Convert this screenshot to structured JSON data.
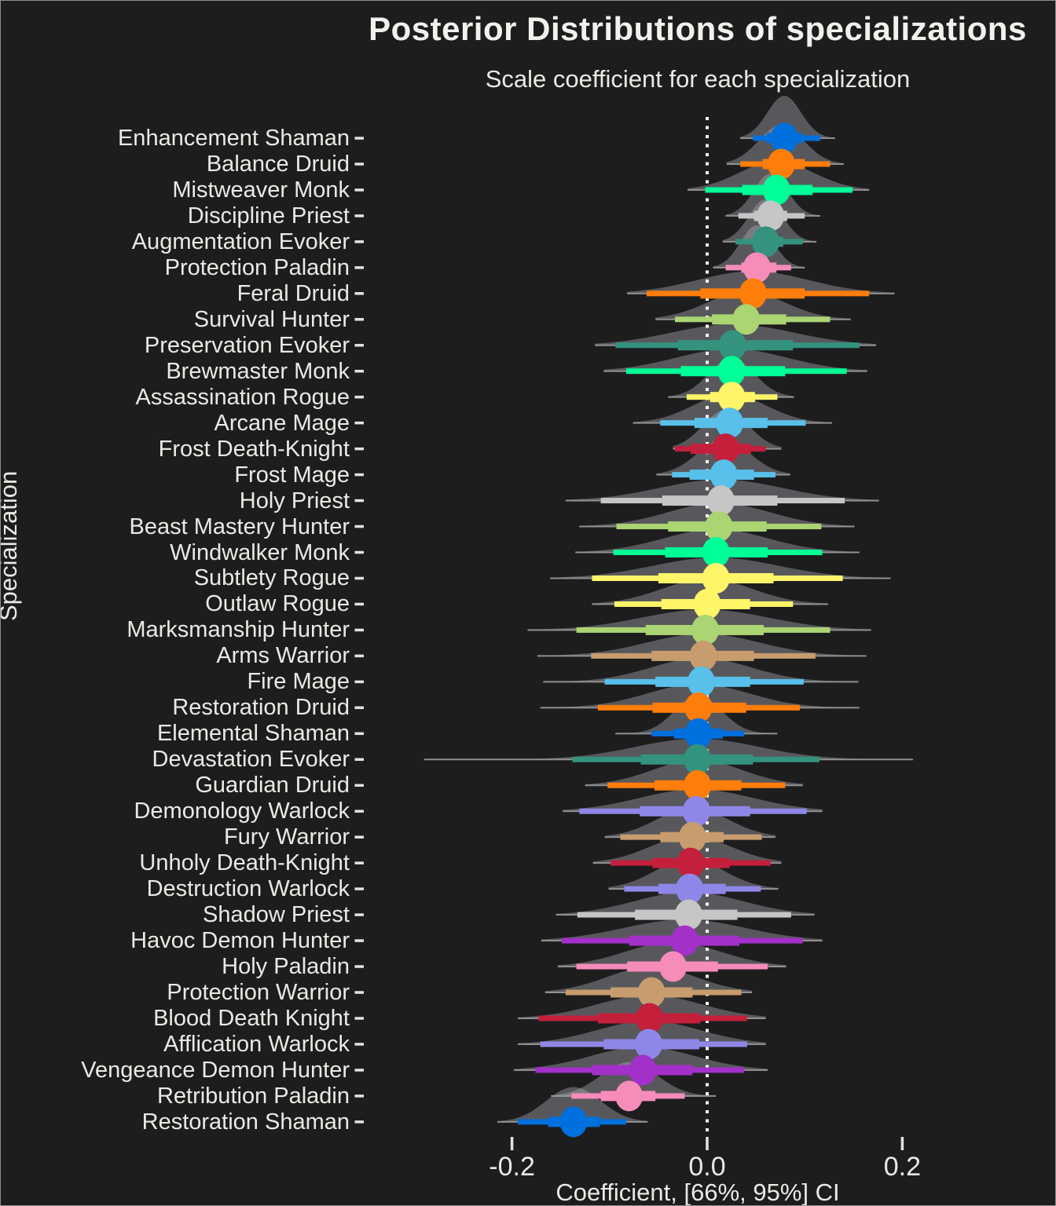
{
  "figure": {
    "title": "Posterior Distributions of specializations",
    "subtitle": "Scale coefficient for each specialization"
  },
  "axes": {
    "x_label": "Coefficient, [66%, 95%] CI",
    "y_label": "Specialization"
  },
  "style": {
    "background": "#1d1d1e",
    "text_color": "#ece9e4",
    "density_fill": "rgba(172,172,178,0.42)",
    "whisker_color": "#9b9b9b",
    "zero_line_color": "#ffffff",
    "tick_color": "#e6e3de"
  },
  "chart_data": {
    "type": "area",
    "subtype": "ridgeline-interval-forest (half-eye posterior densities with 66%/95% CI bars and median dots)",
    "title": "Posterior Distributions of specializations",
    "subtitle": "Scale coefficient for each specialization",
    "xlabel": "Coefficient, [66%, 95%] CI",
    "ylabel": "Specialization",
    "interval_levels": [
      "66%",
      "95%"
    ],
    "zero_reference_line": 0.0,
    "x_axis": {
      "range": [
        -0.345,
        0.355
      ],
      "ticks": [
        {
          "value": -0.2,
          "label": "-0.2"
        },
        {
          "value": 0.0,
          "label": "0.0"
        },
        {
          "value": 0.2,
          "label": "0.2"
        }
      ]
    },
    "rows": [
      {
        "label": "Enhancement Shaman",
        "color": "#0070DE",
        "median": 0.079,
        "ci66": [
          0.061,
          0.098
        ],
        "ci95": [
          0.047,
          0.116
        ],
        "range": [
          0.034,
          0.131
        ]
      },
      {
        "label": "Balance Druid",
        "color": "#FF7D0A",
        "median": 0.076,
        "ci66": [
          0.057,
          0.1
        ],
        "ci95": [
          0.034,
          0.126
        ],
        "range": [
          0.02,
          0.14
        ]
      },
      {
        "label": "Mistweaver Monk",
        "color": "#00FF96",
        "median": 0.071,
        "ci66": [
          0.036,
          0.108
        ],
        "ci95": [
          -0.002,
          0.149
        ],
        "range": [
          -0.02,
          0.166
        ]
      },
      {
        "label": "Discipline Priest",
        "color": "#C6C6C6",
        "median": 0.065,
        "ci66": [
          0.048,
          0.082
        ],
        "ci95": [
          0.032,
          0.1
        ],
        "range": [
          0.019,
          0.116
        ]
      },
      {
        "label": "Augmentation Evoker",
        "color": "#33937F",
        "median": 0.06,
        "ci66": [
          0.047,
          0.078
        ],
        "ci95": [
          0.029,
          0.098
        ],
        "range": [
          0.016,
          0.112
        ]
      },
      {
        "label": "Protection Paladin",
        "color": "#F58CBA",
        "median": 0.051,
        "ci66": [
          0.035,
          0.071
        ],
        "ci95": [
          0.019,
          0.086
        ],
        "range": [
          0.006,
          0.1
        ]
      },
      {
        "label": "Feral Druid",
        "color": "#FF7D0A",
        "median": 0.047,
        "ci66": [
          -0.007,
          0.1
        ],
        "ci95": [
          -0.062,
          0.166
        ],
        "range": [
          -0.082,
          0.192
        ]
      },
      {
        "label": "Survival Hunter",
        "color": "#ABD473",
        "median": 0.04,
        "ci66": [
          0.005,
          0.081
        ],
        "ci95": [
          -0.033,
          0.126
        ],
        "range": [
          -0.053,
          0.147
        ]
      },
      {
        "label": "Preservation Evoker",
        "color": "#33937F",
        "median": 0.026,
        "ci66": [
          -0.03,
          0.088
        ],
        "ci95": [
          -0.094,
          0.156
        ],
        "range": [
          -0.115,
          0.173
        ]
      },
      {
        "label": "Brewmaster Monk",
        "color": "#00FF96",
        "median": 0.025,
        "ci66": [
          -0.027,
          0.08
        ],
        "ci95": [
          -0.083,
          0.143
        ],
        "range": [
          -0.106,
          0.164
        ]
      },
      {
        "label": "Assassination Rogue",
        "color": "#FFF569",
        "median": 0.025,
        "ci66": [
          0.003,
          0.049
        ],
        "ci95": [
          -0.021,
          0.072
        ],
        "range": [
          -0.04,
          0.089
        ]
      },
      {
        "label": "Arcane Mage",
        "color": "#58C0EA",
        "median": 0.023,
        "ci66": [
          -0.013,
          0.062
        ],
        "ci95": [
          -0.048,
          0.101
        ],
        "range": [
          -0.076,
          0.128
        ]
      },
      {
        "label": "Frost Death-Knight",
        "color": "#C41F3B",
        "median": 0.019,
        "ci66": [
          -0.017,
          0.045
        ],
        "ci95": [
          -0.033,
          0.06
        ],
        "range": [
          -0.035,
          0.076
        ]
      },
      {
        "label": "Frost Mage",
        "color": "#58C0EA",
        "median": 0.017,
        "ci66": [
          -0.018,
          0.048
        ],
        "ci95": [
          -0.036,
          0.07
        ],
        "range": [
          -0.052,
          0.085
        ]
      },
      {
        "label": "Holy Priest",
        "color": "#C6C6C6",
        "median": 0.014,
        "ci66": [
          -0.046,
          0.072
        ],
        "ci95": [
          -0.109,
          0.141
        ],
        "range": [
          -0.145,
          0.176
        ]
      },
      {
        "label": "Beast Mastery Hunter",
        "color": "#ABD473",
        "median": 0.012,
        "ci66": [
          -0.04,
          0.061
        ],
        "ci95": [
          -0.093,
          0.117
        ],
        "range": [
          -0.131,
          0.151
        ]
      },
      {
        "label": "Windwalker Monk",
        "color": "#00FF96",
        "median": 0.009,
        "ci66": [
          -0.043,
          0.062
        ],
        "ci95": [
          -0.096,
          0.118
        ],
        "range": [
          -0.135,
          0.156
        ]
      },
      {
        "label": "Subtlety Rogue",
        "color": "#FFF569",
        "median": 0.009,
        "ci66": [
          -0.05,
          0.068
        ],
        "ci95": [
          -0.118,
          0.139
        ],
        "range": [
          -0.161,
          0.188
        ]
      },
      {
        "label": "Outlaw Rogue",
        "color": "#FFF569",
        "median": 0.0,
        "ci66": [
          -0.047,
          0.044
        ],
        "ci95": [
          -0.095,
          0.088
        ],
        "range": [
          -0.118,
          0.124
        ]
      },
      {
        "label": "Marksmanship Hunter",
        "color": "#ABD473",
        "median": -0.002,
        "ci66": [
          -0.063,
          0.058
        ],
        "ci95": [
          -0.134,
          0.126
        ],
        "range": [
          -0.184,
          0.168
        ]
      },
      {
        "label": "Arms Warrior",
        "color": "#C79C6E",
        "median": -0.004,
        "ci66": [
          -0.057,
          0.048
        ],
        "ci95": [
          -0.119,
          0.111
        ],
        "range": [
          -0.174,
          0.163
        ]
      },
      {
        "label": "Fire Mage",
        "color": "#58C0EA",
        "median": -0.006,
        "ci66": [
          -0.053,
          0.044
        ],
        "ci95": [
          -0.105,
          0.099
        ],
        "range": [
          -0.168,
          0.155
        ]
      },
      {
        "label": "Restoration Druid",
        "color": "#FF7D0A",
        "median": -0.009,
        "ci66": [
          -0.056,
          0.04
        ],
        "ci95": [
          -0.112,
          0.095
        ],
        "range": [
          -0.171,
          0.156
        ]
      },
      {
        "label": "Elemental Shaman",
        "color": "#0070DE",
        "median": -0.009,
        "ci66": [
          -0.034,
          0.016
        ],
        "ci95": [
          -0.057,
          0.038
        ],
        "range": [
          -0.094,
          0.072
        ]
      },
      {
        "label": "Devastation Evoker",
        "color": "#33937F",
        "median": -0.01,
        "ci66": [
          -0.068,
          0.047
        ],
        "ci95": [
          -0.138,
          0.115
        ],
        "range": [
          -0.29,
          0.211
        ]
      },
      {
        "label": "Guardian Druid",
        "color": "#FF7D0A",
        "median": -0.01,
        "ci66": [
          -0.054,
          0.035
        ],
        "ci95": [
          -0.102,
          0.08
        ],
        "range": [
          -0.125,
          0.098
        ]
      },
      {
        "label": "Demonology Warlock",
        "color": "#8F87E8",
        "median": -0.011,
        "ci66": [
          -0.069,
          0.044
        ],
        "ci95": [
          -0.131,
          0.102
        ],
        "range": [
          -0.148,
          0.118
        ]
      },
      {
        "label": "Fury Warrior",
        "color": "#C79C6E",
        "median": -0.015,
        "ci66": [
          -0.048,
          0.017
        ],
        "ci95": [
          -0.089,
          0.056
        ],
        "range": [
          -0.105,
          0.07
        ]
      },
      {
        "label": "Unholy Death-Knight",
        "color": "#C41F3B",
        "median": -0.017,
        "ci66": [
          -0.056,
          0.023
        ],
        "ci95": [
          -0.099,
          0.065
        ],
        "range": [
          -0.117,
          0.076
        ]
      },
      {
        "label": "Destruction Warlock",
        "color": "#8F87E8",
        "median": -0.018,
        "ci66": [
          -0.05,
          0.019
        ],
        "ci95": [
          -0.085,
          0.055
        ],
        "range": [
          -0.101,
          0.073
        ]
      },
      {
        "label": "Shadow Priest",
        "color": "#C6C6C6",
        "median": -0.019,
        "ci66": [
          -0.074,
          0.031
        ],
        "ci95": [
          -0.133,
          0.086
        ],
        "range": [
          -0.155,
          0.11
        ]
      },
      {
        "label": "Havoc Demon Hunter",
        "color": "#A330C9",
        "median": -0.023,
        "ci66": [
          -0.08,
          0.033
        ],
        "ci95": [
          -0.149,
          0.098
        ],
        "range": [
          -0.17,
          0.118
        ]
      },
      {
        "label": "Holy Paladin",
        "color": "#F58CBA",
        "median": -0.035,
        "ci66": [
          -0.082,
          0.011
        ],
        "ci95": [
          -0.134,
          0.062
        ],
        "range": [
          -0.153,
          0.081
        ]
      },
      {
        "label": "Protection Warrior",
        "color": "#C79C6E",
        "median": -0.057,
        "ci66": [
          -0.099,
          -0.015
        ],
        "ci95": [
          -0.145,
          0.035
        ],
        "range": [
          -0.166,
          0.046
        ]
      },
      {
        "label": "Blood Death Knight",
        "color": "#C41F3B",
        "median": -0.059,
        "ci66": [
          -0.112,
          -0.007
        ],
        "ci95": [
          -0.173,
          0.041
        ],
        "range": [
          -0.194,
          0.06
        ]
      },
      {
        "label": "Afflication Warlock",
        "color": "#8F87E8",
        "median": -0.06,
        "ci66": [
          -0.106,
          -0.008
        ],
        "ci95": [
          -0.171,
          0.041
        ],
        "range": [
          -0.194,
          0.06
        ]
      },
      {
        "label": "Vengeance Demon Hunter",
        "color": "#A330C9",
        "median": -0.066,
        "ci66": [
          -0.118,
          -0.015
        ],
        "ci95": [
          -0.176,
          0.038
        ],
        "range": [
          -0.198,
          0.062
        ]
      },
      {
        "label": "Retribution Paladin",
        "color": "#F58CBA",
        "median": -0.08,
        "ci66": [
          -0.109,
          -0.053
        ],
        "ci95": [
          -0.139,
          -0.023
        ],
        "range": [
          -0.16,
          0.009
        ]
      },
      {
        "label": "Restoration Shaman",
        "color": "#0070DE",
        "median": -0.137,
        "ci66": [
          -0.163,
          -0.11
        ],
        "ci95": [
          -0.194,
          -0.083
        ],
        "range": [
          -0.215,
          -0.061
        ]
      }
    ]
  }
}
